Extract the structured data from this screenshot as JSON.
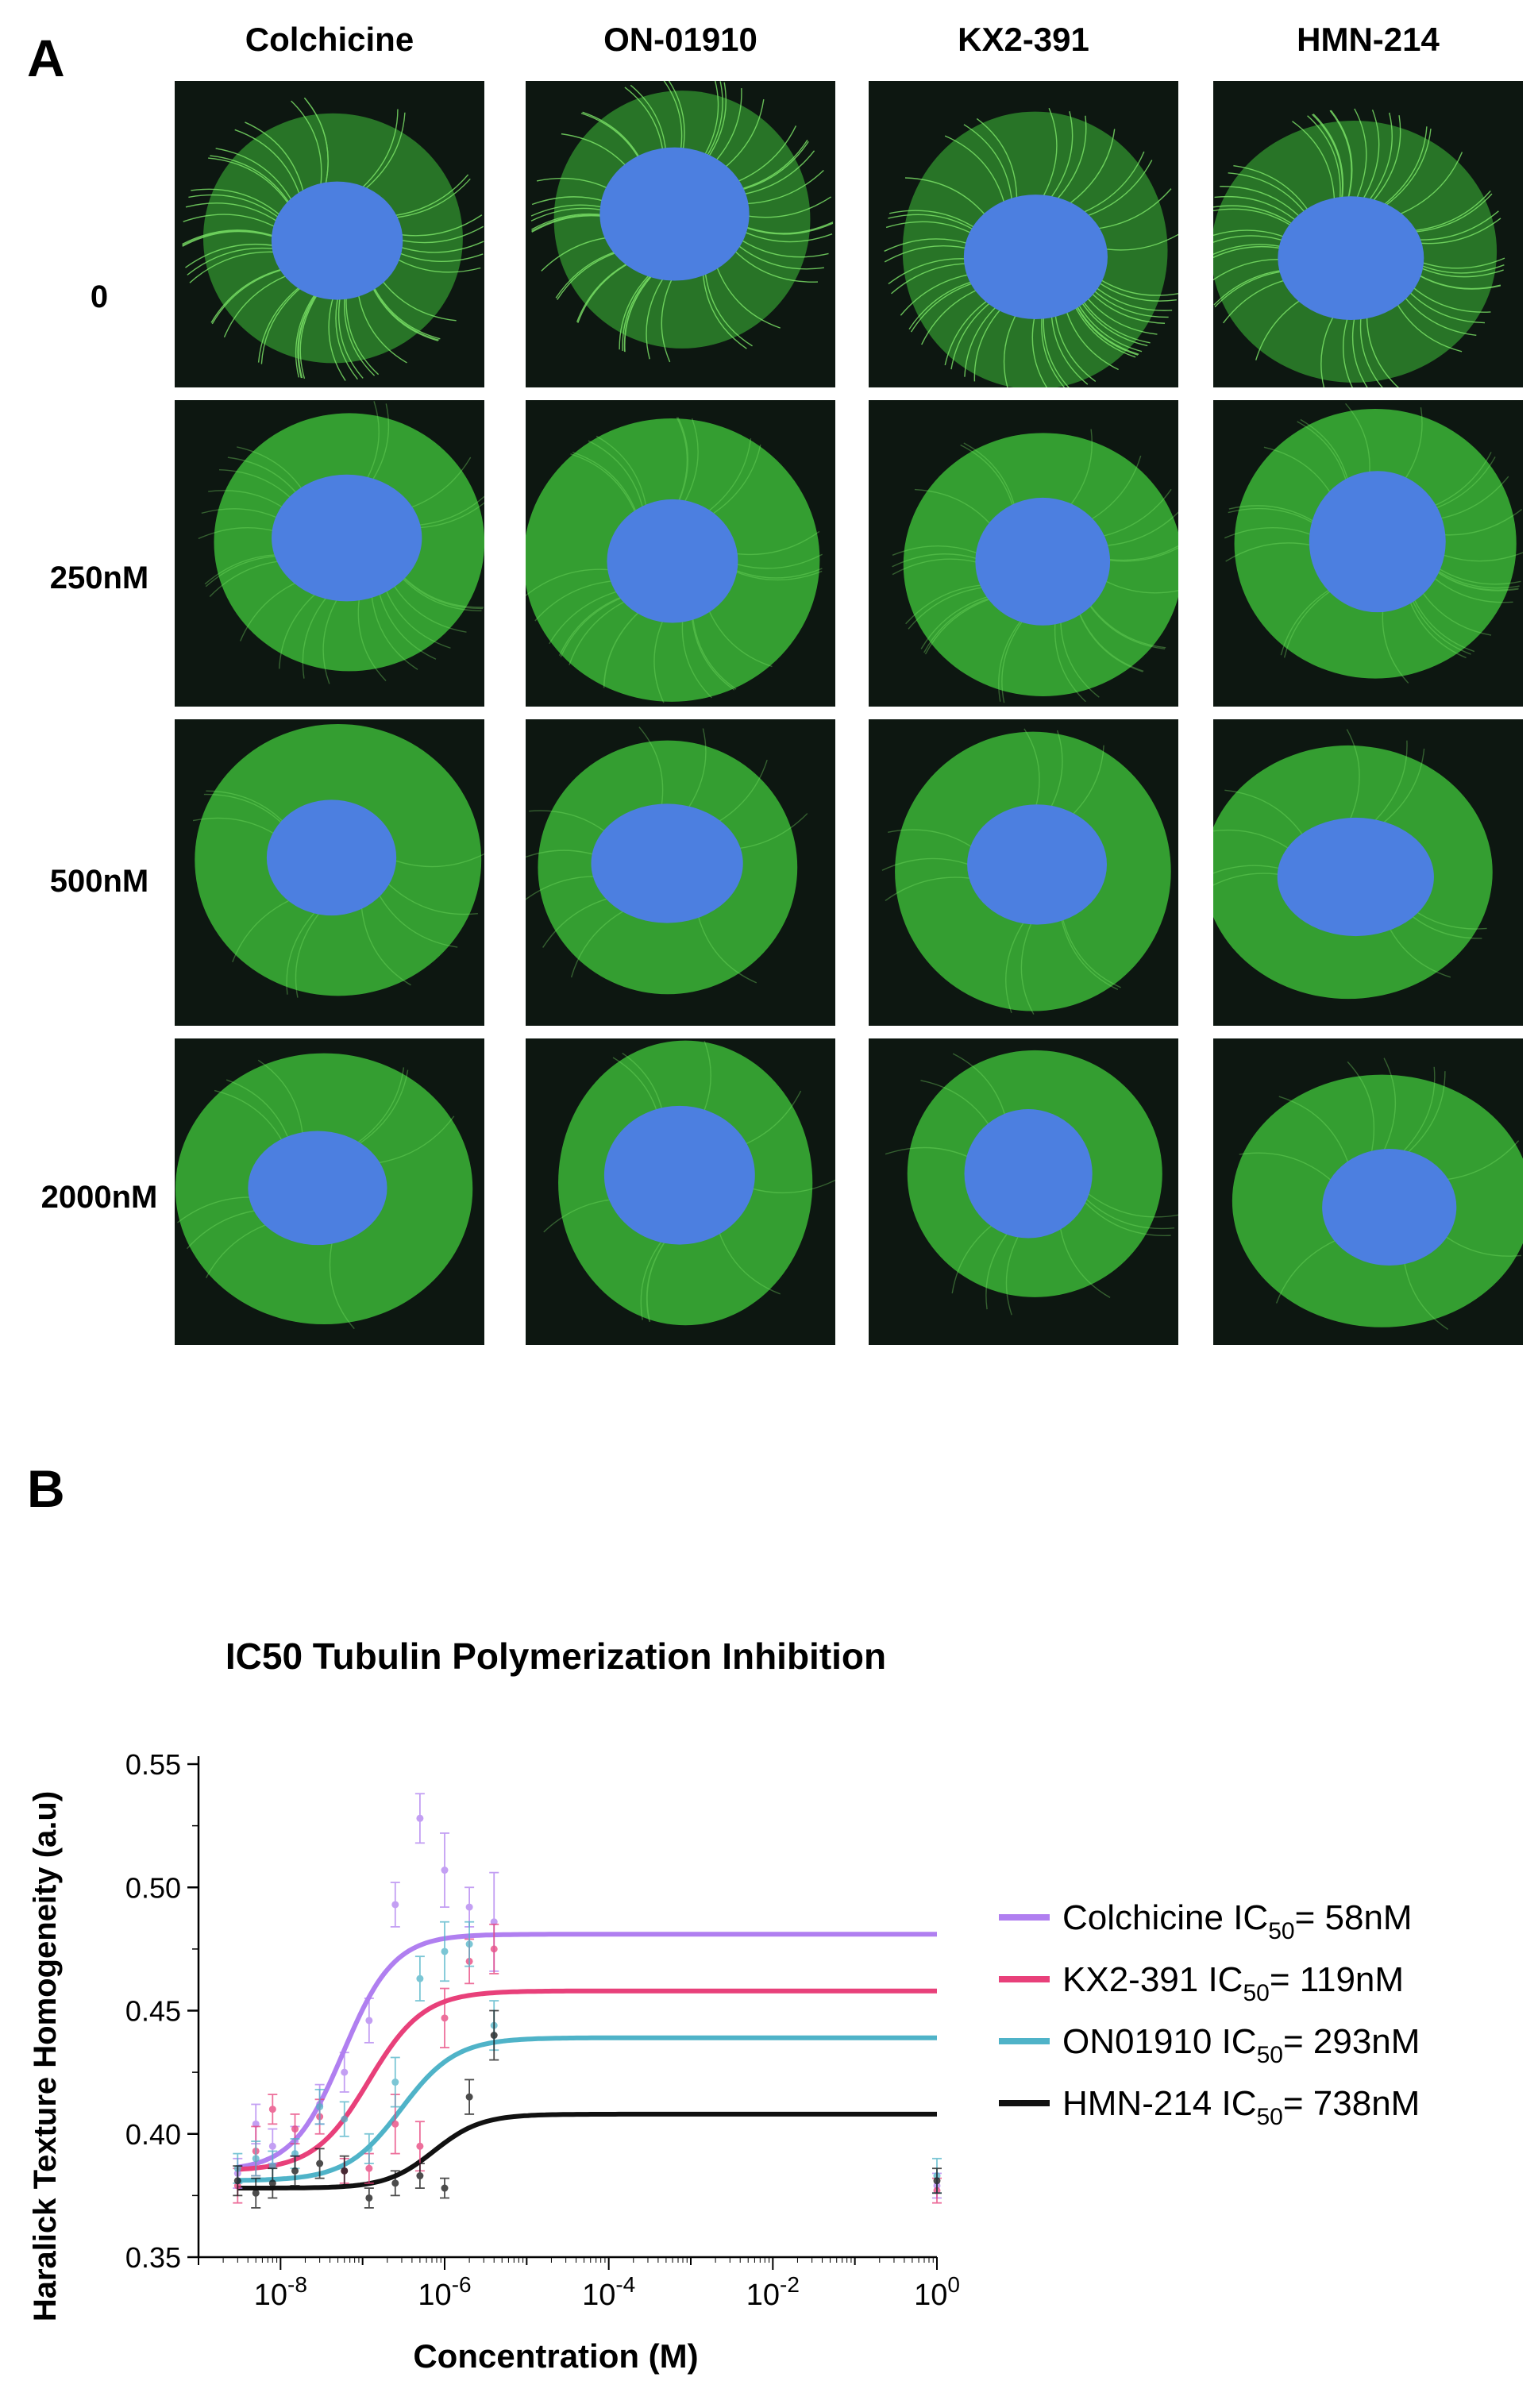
{
  "panel_a": {
    "letter": "A",
    "columns": [
      "Colchicine",
      "ON-01910",
      "KX2-391",
      "HMN-214"
    ],
    "rows": [
      "0",
      "250nM",
      "500nM",
      "2000nM"
    ],
    "colors": {
      "microtubule": "#3fc13a",
      "nucleus": "#4c7fe0",
      "background": "#0d1711"
    }
  },
  "panel_b": {
    "letter": "B"
  },
  "chart_data": {
    "type": "scatter",
    "title": "IC50 Tubulin Polymerization Inhibition",
    "xlabel": "Concentration (M)",
    "ylabel": "Haralick Texture Homogeneity (a.u)",
    "x_scale": "log",
    "xlim": [
      1e-09,
      1
    ],
    "ylim": [
      0.35,
      0.55
    ],
    "x_ticks": [
      {
        "value": 1e-08,
        "base": "10",
        "exp": "-8"
      },
      {
        "value": 1e-06,
        "base": "10",
        "exp": "-6"
      },
      {
        "value": 0.0001,
        "base": "10",
        "exp": "-4"
      },
      {
        "value": 0.01,
        "base": "10",
        "exp": "-2"
      },
      {
        "value": 1,
        "base": "10",
        "exp": "0"
      }
    ],
    "y_ticks": [
      "0.35",
      "0.40",
      "0.45",
      "0.50",
      "0.55"
    ],
    "legend_position": "right",
    "series": [
      {
        "name": "Colchicine",
        "legend_label": "Colchicine IC",
        "ic50_label": "= 58nM",
        "color": "#b07ff0",
        "fit": {
          "bottom": 0.385,
          "top": 0.481,
          "ic50": 5.8e-08,
          "hill": 1.4
        },
        "points": [
          {
            "x": 3e-09,
            "y": 0.384,
            "err": 0.006
          },
          {
            "x": 5e-09,
            "y": 0.404,
            "err": 0.008
          },
          {
            "x": 8e-09,
            "y": 0.395,
            "err": 0.007
          },
          {
            "x": 1.5e-08,
            "y": 0.397,
            "err": 0.006
          },
          {
            "x": 3e-08,
            "y": 0.412,
            "err": 0.008
          },
          {
            "x": 6e-08,
            "y": 0.425,
            "err": 0.008
          },
          {
            "x": 1.2e-07,
            "y": 0.446,
            "err": 0.009
          },
          {
            "x": 2.5e-07,
            "y": 0.493,
            "err": 0.009
          },
          {
            "x": 5e-07,
            "y": 0.528,
            "err": 0.01
          },
          {
            "x": 1e-06,
            "y": 0.507,
            "err": 0.015
          },
          {
            "x": 2e-06,
            "y": 0.492,
            "err": 0.008
          },
          {
            "x": 4e-06,
            "y": 0.486,
            "err": 0.02
          },
          {
            "x": 1,
            "y": 0.379,
            "err": 0.005
          }
        ]
      },
      {
        "name": "KX2-391",
        "legend_label": "KX2-391 IC",
        "ic50_label": "= 119nM",
        "color": "#e8407a",
        "fit": {
          "bottom": 0.385,
          "top": 0.458,
          "ic50": 1.19e-07,
          "hill": 1.3
        },
        "points": [
          {
            "x": 3e-09,
            "y": 0.379,
            "err": 0.007
          },
          {
            "x": 5e-09,
            "y": 0.393,
            "err": 0.01
          },
          {
            "x": 8e-09,
            "y": 0.41,
            "err": 0.006
          },
          {
            "x": 1.5e-08,
            "y": 0.402,
            "err": 0.006
          },
          {
            "x": 3e-08,
            "y": 0.407,
            "err": 0.007
          },
          {
            "x": 6e-08,
            "y": 0.385,
            "err": 0.005
          },
          {
            "x": 1.2e-07,
            "y": 0.386,
            "err": 0.006
          },
          {
            "x": 2.5e-07,
            "y": 0.404,
            "err": 0.012
          },
          {
            "x": 5e-07,
            "y": 0.395,
            "err": 0.01
          },
          {
            "x": 1e-06,
            "y": 0.447,
            "err": 0.012
          },
          {
            "x": 2e-06,
            "y": 0.47,
            "err": 0.009
          },
          {
            "x": 4e-06,
            "y": 0.475,
            "err": 0.01
          },
          {
            "x": 1,
            "y": 0.377,
            "err": 0.005
          }
        ]
      },
      {
        "name": "ON01910",
        "legend_label": "ON01910 IC",
        "ic50_label": "= 293nM",
        "color": "#4fb3c8",
        "fit": {
          "bottom": 0.381,
          "top": 0.439,
          "ic50": 2.93e-07,
          "hill": 1.3
        },
        "points": [
          {
            "x": 3e-09,
            "y": 0.386,
            "err": 0.006
          },
          {
            "x": 5e-09,
            "y": 0.39,
            "err": 0.007
          },
          {
            "x": 8e-09,
            "y": 0.387,
            "err": 0.006
          },
          {
            "x": 1.5e-08,
            "y": 0.392,
            "err": 0.006
          },
          {
            "x": 3e-08,
            "y": 0.411,
            "err": 0.007
          },
          {
            "x": 6e-08,
            "y": 0.406,
            "err": 0.007
          },
          {
            "x": 1.2e-07,
            "y": 0.394,
            "err": 0.006
          },
          {
            "x": 2.5e-07,
            "y": 0.421,
            "err": 0.01
          },
          {
            "x": 5e-07,
            "y": 0.463,
            "err": 0.009
          },
          {
            "x": 1e-06,
            "y": 0.474,
            "err": 0.012
          },
          {
            "x": 2e-06,
            "y": 0.477,
            "err": 0.009
          },
          {
            "x": 4e-06,
            "y": 0.444,
            "err": 0.01
          },
          {
            "x": 1,
            "y": 0.383,
            "err": 0.007
          }
        ]
      },
      {
        "name": "HMN-214",
        "legend_label": "HMN-214 IC",
        "ic50_label": "= 738nM",
        "color": "#111111",
        "fit": {
          "bottom": 0.378,
          "top": 0.408,
          "ic50": 7.38e-07,
          "hill": 1.5
        },
        "points": [
          {
            "x": 3e-09,
            "y": 0.381,
            "err": 0.006
          },
          {
            "x": 5e-09,
            "y": 0.376,
            "err": 0.006
          },
          {
            "x": 8e-09,
            "y": 0.38,
            "err": 0.006
          },
          {
            "x": 1.5e-08,
            "y": 0.385,
            "err": 0.006
          },
          {
            "x": 3e-08,
            "y": 0.388,
            "err": 0.006
          },
          {
            "x": 6e-08,
            "y": 0.385,
            "err": 0.006
          },
          {
            "x": 1.2e-07,
            "y": 0.374,
            "err": 0.004
          },
          {
            "x": 2.5e-07,
            "y": 0.38,
            "err": 0.005
          },
          {
            "x": 5e-07,
            "y": 0.383,
            "err": 0.005
          },
          {
            "x": 1e-06,
            "y": 0.378,
            "err": 0.004
          },
          {
            "x": 2e-06,
            "y": 0.415,
            "err": 0.007
          },
          {
            "x": 4e-06,
            "y": 0.44,
            "err": 0.01
          },
          {
            "x": 1,
            "y": 0.381,
            "err": 0.005
          }
        ]
      }
    ]
  }
}
